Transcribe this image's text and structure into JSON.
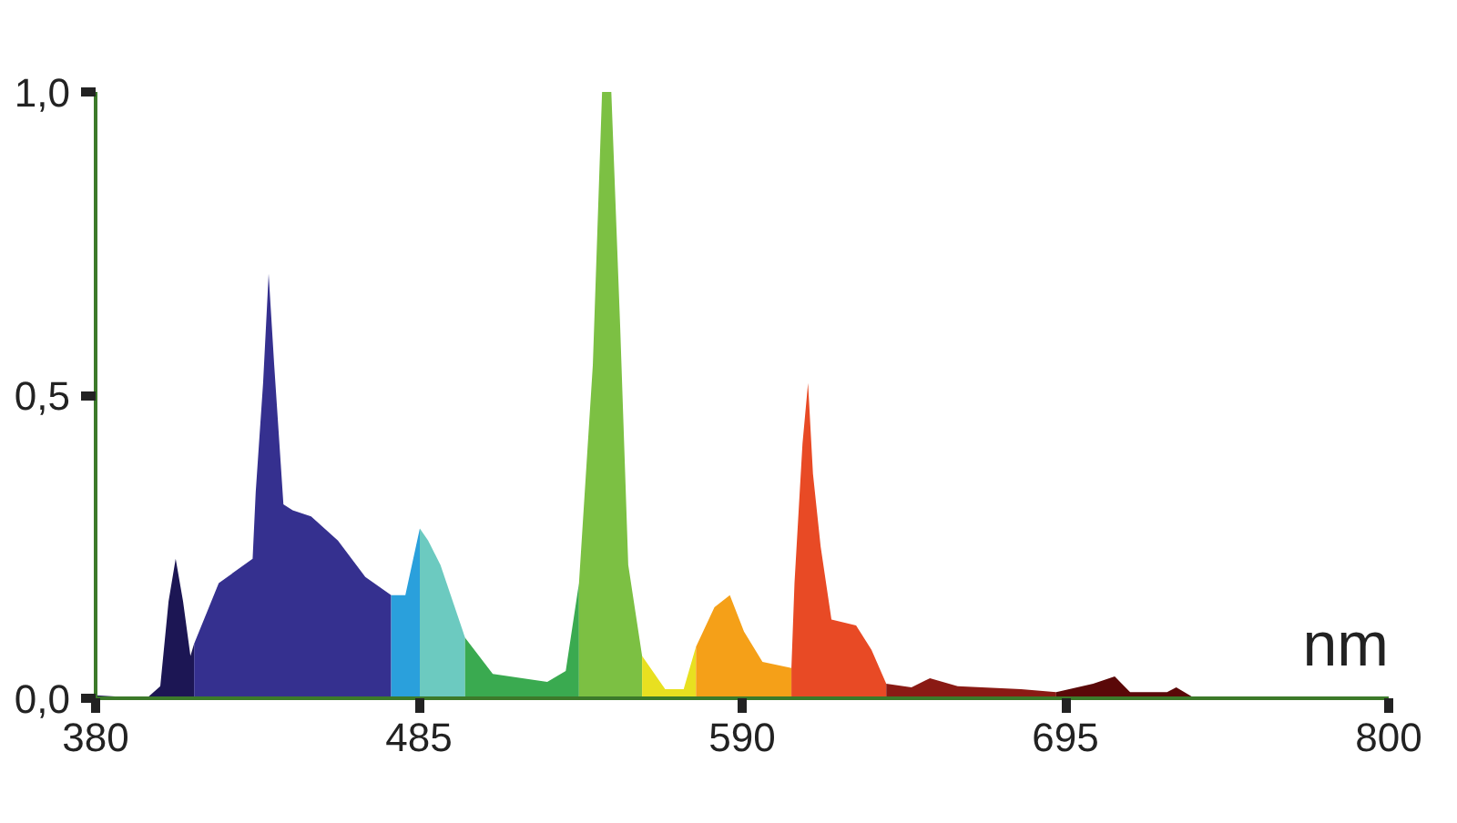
{
  "chart_data": {
    "type": "area",
    "xlabel": "nm",
    "series": [
      {
        "color": "#1c1654",
        "x": [
          380,
          396.6,
          401,
          403.7,
          406,
          408.4,
          410.8,
          412
        ],
        "values": [
          0.005,
          0,
          0.02,
          0.16,
          0.23,
          0.16,
          0.07,
          0.09
        ]
      },
      {
        "color": "#35308f",
        "x": [
          412,
          420,
          431,
          432,
          434.4,
          436.2,
          438,
          441,
          444,
          450,
          458.7,
          467.6,
          476
        ],
        "values": [
          0.09,
          0.19,
          0.23,
          0.34,
          0.52,
          0.7,
          0.55,
          0.32,
          0.31,
          0.3,
          0.26,
          0.2,
          0.17
        ]
      },
      {
        "color": "#2aa0dc",
        "x": [
          476,
          480.6,
          485.3
        ],
        "values": [
          0.17,
          0.17,
          0.28
        ]
      },
      {
        "color": "#6ccac0",
        "x": [
          485.3,
          488,
          492,
          500
        ],
        "values": [
          0.28,
          0.26,
          0.22,
          0.1
        ]
      },
      {
        "color": "#3aaa50",
        "x": [
          500,
          509,
          526.7,
          532.7,
          537
        ],
        "values": [
          0.1,
          0.04,
          0.027,
          0.045,
          0.19
        ]
      },
      {
        "color": "#7cc043",
        "x": [
          537,
          541.5,
          544.5,
          547.5,
          550.4,
          553,
          557.5
        ],
        "values": [
          0.19,
          0.55,
          1.0,
          1.0,
          0.61,
          0.22,
          0.07
        ]
      },
      {
        "color": "#e8e020",
        "x": [
          557.5,
          565,
          571,
          575
        ],
        "values": [
          0.07,
          0.015,
          0.015,
          0.085
        ]
      },
      {
        "color": "#f5a018",
        "x": [
          575,
          581,
          586,
          590.6,
          596.6,
          606
        ],
        "values": [
          0.085,
          0.15,
          0.17,
          0.11,
          0.06,
          0.05
        ]
      },
      {
        "color": "#e84a25",
        "x": [
          606,
          607,
          609.6,
          611.4,
          613,
          615.5,
          619,
          627,
          632,
          636.8
        ],
        "values": [
          0.05,
          0.19,
          0.42,
          0.52,
          0.37,
          0.25,
          0.13,
          0.12,
          0.08,
          0.024
        ]
      },
      {
        "color": "#8a1a14",
        "x": [
          636.8,
          645,
          651,
          660,
          680.6,
          692
        ],
        "values": [
          0.024,
          0.018,
          0.033,
          0.02,
          0.015,
          0.01
        ]
      },
      {
        "color": "#5a0808",
        "x": [
          692,
          704,
          711,
          716,
          728,
          731,
          737,
          800
        ],
        "values": [
          0.01,
          0.024,
          0.036,
          0.01,
          0.01,
          0.018,
          0,
          0
        ]
      }
    ],
    "xlim": [
      380,
      800
    ],
    "ylim": [
      0,
      1
    ],
    "xticks": [
      380,
      485,
      590,
      695,
      800
    ],
    "yticks": [
      {
        "value": 0,
        "label": "0,0"
      },
      {
        "value": 0.5,
        "label": "0,5"
      },
      {
        "value": 1,
        "label": "1,0"
      }
    ],
    "grid": false
  }
}
